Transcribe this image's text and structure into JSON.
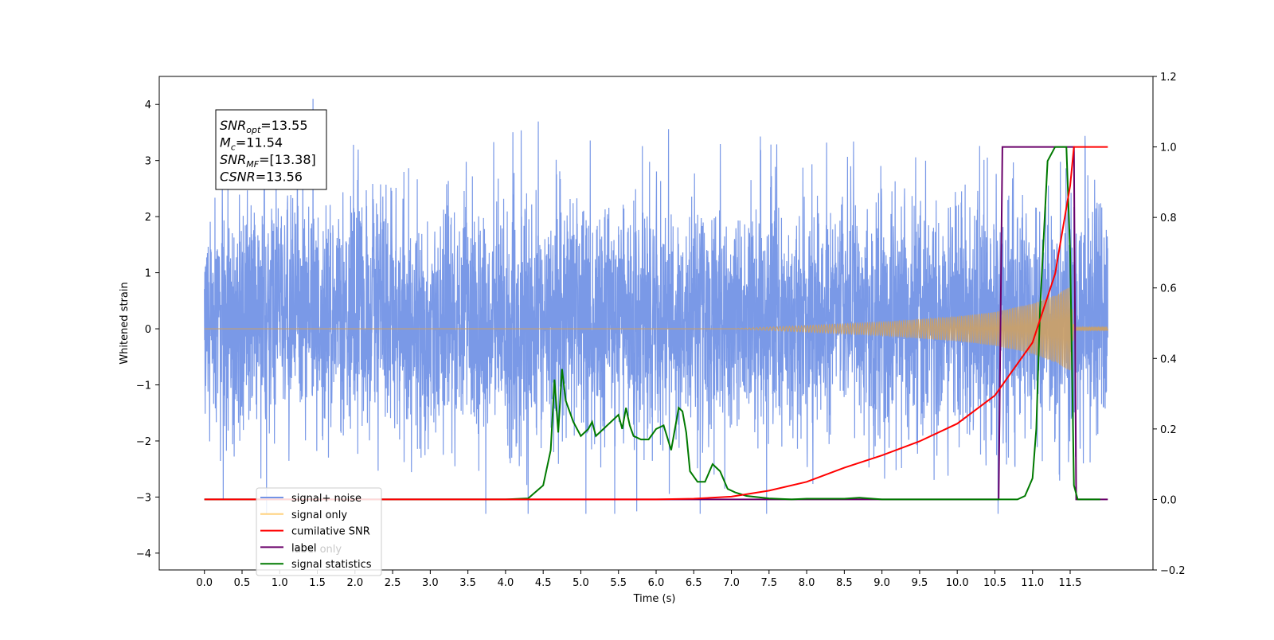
{
  "chart_data": {
    "type": "line",
    "xlabel": "Time (s)",
    "ylabel": "Whitened strain",
    "xlim": [
      -0.6,
      12.6
    ],
    "ylim": [
      -4.3,
      4.5
    ],
    "y2lim": [
      -0.2,
      1.2
    ],
    "x_ticks": [
      "0.0",
      "0.5",
      "1.0",
      "1.5",
      "2.0",
      "2.5",
      "3.0",
      "3.5",
      "4.0",
      "4.5",
      "5.0",
      "5.5",
      "6.0",
      "6.5",
      "7.0",
      "7.5",
      "8.0",
      "8.5",
      "9.0",
      "9.5",
      "10.0",
      "10.5",
      "11.0",
      "11.5"
    ],
    "y_ticks": [
      "4",
      "3",
      "2",
      "1",
      "0",
      "−1",
      "−2",
      "−3",
      "−4"
    ],
    "y2_ticks": [
      "1.2",
      "1.0",
      "0.8",
      "0.6",
      "0.4",
      "0.2",
      "0.0",
      "−0.2"
    ],
    "annotation": {
      "lines": [
        {
          "main": "SNR",
          "sub": "opt",
          "value": "=13.55"
        },
        {
          "main": "M",
          "sub": "c",
          "value": "=11.54"
        },
        {
          "main": "SNR",
          "sub": "MF",
          "value": "=[13.38]"
        },
        {
          "main": "CSNR",
          "sub": "",
          "value": "=13.56"
        }
      ]
    },
    "legend": {
      "placement": "lower-left",
      "entries": [
        {
          "label": "signal+ noise",
          "color": "#7393e6"
        },
        {
          "label": "signal only",
          "color": "#ffd27f"
        },
        {
          "label": "cumilative SNR",
          "color": "#ff0000"
        },
        {
          "label": "label",
          "color": "#6a006a"
        },
        {
          "label": "signal statistics",
          "color": "#007a00"
        }
      ],
      "ghost_text": "label only"
    },
    "series": [
      {
        "name": "signal+ noise",
        "axis": "left",
        "color": "#7393e6",
        "noise_amplitude_range": [
          -3.3,
          4.1
        ],
        "t_range": [
          0.0,
          12.0
        ]
      },
      {
        "name": "signal only",
        "axis": "left",
        "color": "#c9a06a",
        "chirp_start": 7.0,
        "merger": 11.5,
        "envelope": {
          "t": [
            7.0,
            8.0,
            9.0,
            10.0,
            10.5,
            11.0,
            11.3,
            11.5,
            11.55,
            12.0
          ],
          "a": [
            0.0,
            0.06,
            0.12,
            0.22,
            0.3,
            0.45,
            0.6,
            0.75,
            0.03,
            0.03
          ]
        }
      },
      {
        "name": "cumilative SNR",
        "axis": "right",
        "color": "#ff0000",
        "x": [
          0.0,
          6.0,
          6.5,
          7.0,
          7.5,
          8.0,
          8.5,
          9.0,
          9.5,
          10.0,
          10.5,
          11.0,
          11.3,
          11.5,
          11.55,
          12.0
        ],
        "y": [
          0.0,
          0.0,
          0.002,
          0.008,
          0.025,
          0.05,
          0.09,
          0.125,
          0.165,
          0.215,
          0.295,
          0.445,
          0.64,
          0.89,
          1.0,
          1.0
        ]
      },
      {
        "name": "label",
        "axis": "right",
        "color": "#6a006a",
        "x": [
          0.0,
          10.55,
          10.6,
          11.55,
          11.58,
          12.0
        ],
        "y": [
          0.0,
          0.0,
          1.0,
          1.0,
          0.0,
          0.0
        ]
      },
      {
        "name": "signal statistics",
        "axis": "right",
        "color": "#007a00",
        "x": [
          0.0,
          4.0,
          4.3,
          4.5,
          4.6,
          4.65,
          4.7,
          4.75,
          4.8,
          4.9,
          5.0,
          5.1,
          5.15,
          5.2,
          5.3,
          5.4,
          5.5,
          5.55,
          5.6,
          5.65,
          5.7,
          5.8,
          5.9,
          6.0,
          6.1,
          6.2,
          6.3,
          6.35,
          6.4,
          6.45,
          6.55,
          6.65,
          6.75,
          6.85,
          6.95,
          7.05,
          7.2,
          7.5,
          7.8,
          8.0,
          8.5,
          8.7,
          9.0,
          10.8,
          10.9,
          11.0,
          11.05,
          11.1,
          11.2,
          11.3,
          11.45,
          11.5,
          11.55,
          11.6,
          11.9
        ],
        "y": [
          0.0,
          0.0,
          0.003,
          0.04,
          0.14,
          0.34,
          0.19,
          0.37,
          0.28,
          0.22,
          0.18,
          0.2,
          0.22,
          0.18,
          0.2,
          0.22,
          0.24,
          0.2,
          0.26,
          0.21,
          0.18,
          0.17,
          0.17,
          0.2,
          0.21,
          0.14,
          0.26,
          0.25,
          0.19,
          0.08,
          0.05,
          0.05,
          0.1,
          0.08,
          0.03,
          0.02,
          0.01,
          0.003,
          0.0,
          0.002,
          0.002,
          0.005,
          0.0,
          0.0,
          0.01,
          0.06,
          0.2,
          0.54,
          0.96,
          1.0,
          1.0,
          0.7,
          0.04,
          0.0,
          0.0
        ]
      }
    ]
  }
}
